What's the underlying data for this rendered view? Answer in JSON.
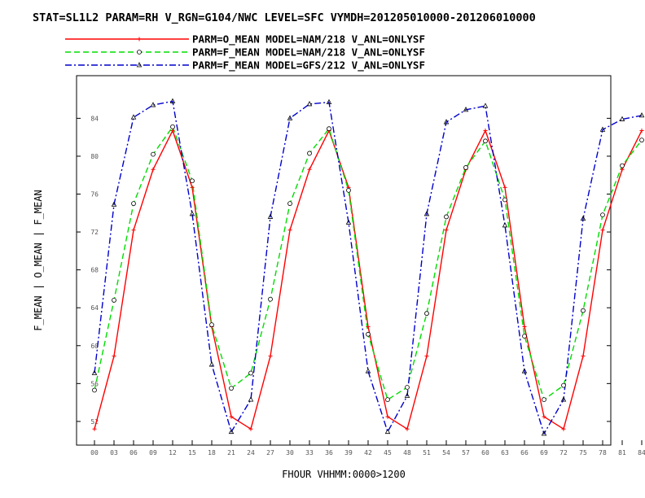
{
  "chart_data": {
    "type": "line",
    "title": "STAT=SL1L2 PARAM=RH V_RGN=G104/NWC LEVEL=SFC VYMDH=201205010000-201206010000",
    "xlabel": "FHOUR VHHMM:0000>1200",
    "ylabel": "F_MEAN | O_MEAN | F_MEAN",
    "categories": [
      "00",
      "03",
      "06",
      "09",
      "12",
      "15",
      "18",
      "21",
      "24",
      "27",
      "30",
      "33",
      "36",
      "39",
      "42",
      "45",
      "48",
      "51",
      "54",
      "57",
      "60",
      "63",
      "66",
      "69",
      "72",
      "75",
      "78",
      "81",
      "84"
    ],
    "yticks": [
      "52",
      "56",
      "60",
      "64",
      "68",
      "72",
      "76",
      "80",
      "84"
    ],
    "ylim": [
      49.5,
      88.5
    ],
    "grid": false,
    "legend_position": "top",
    "series": [
      {
        "name": "PARM=O_MEAN MODEL=NAM/218 V_ANL=ONLYSF",
        "color": "#ff0000",
        "style": "solid",
        "marker": "plus",
        "values": [
          51.2,
          58.9,
          72.2,
          78.6,
          82.7,
          76.7,
          62.0,
          52.5,
          51.2,
          58.9,
          72.2,
          78.6,
          82.7,
          76.7,
          62.0,
          52.5,
          51.2,
          58.9,
          72.2,
          78.6,
          82.7,
          76.7,
          62.0,
          52.5,
          51.2,
          58.9,
          72.2,
          78.6,
          82.7
        ]
      },
      {
        "name": "PARM=F_MEAN MODEL=NAM/218 V_ANL=ONLYSF",
        "color": "#00dd00",
        "style": "dashed",
        "marker": "circle",
        "values": [
          55.3,
          64.8,
          75.0,
          80.2,
          83.1,
          77.4,
          62.2,
          55.5,
          57.1,
          64.9,
          75.0,
          80.3,
          82.9,
          76.4,
          61.2,
          54.3,
          55.6,
          63.4,
          73.6,
          78.8,
          81.6,
          75.4,
          61.0,
          54.3,
          55.8,
          63.7,
          73.8,
          79.0,
          81.7
        ]
      },
      {
        "name": "PARM=F_MEAN MODEL=GFS/212 V_ANL=ONLYSF",
        "color": "#0000cc",
        "style": "dashdot",
        "marker": "triangle",
        "values": [
          57.1,
          74.9,
          84.1,
          85.4,
          85.8,
          73.9,
          58.0,
          50.9,
          54.3,
          73.6,
          84.0,
          85.5,
          85.7,
          73.0,
          57.3,
          50.9,
          54.7,
          73.9,
          83.6,
          84.9,
          85.3,
          72.7,
          57.3,
          50.7,
          54.3,
          73.4,
          82.8,
          83.9,
          84.3
        ]
      }
    ]
  }
}
